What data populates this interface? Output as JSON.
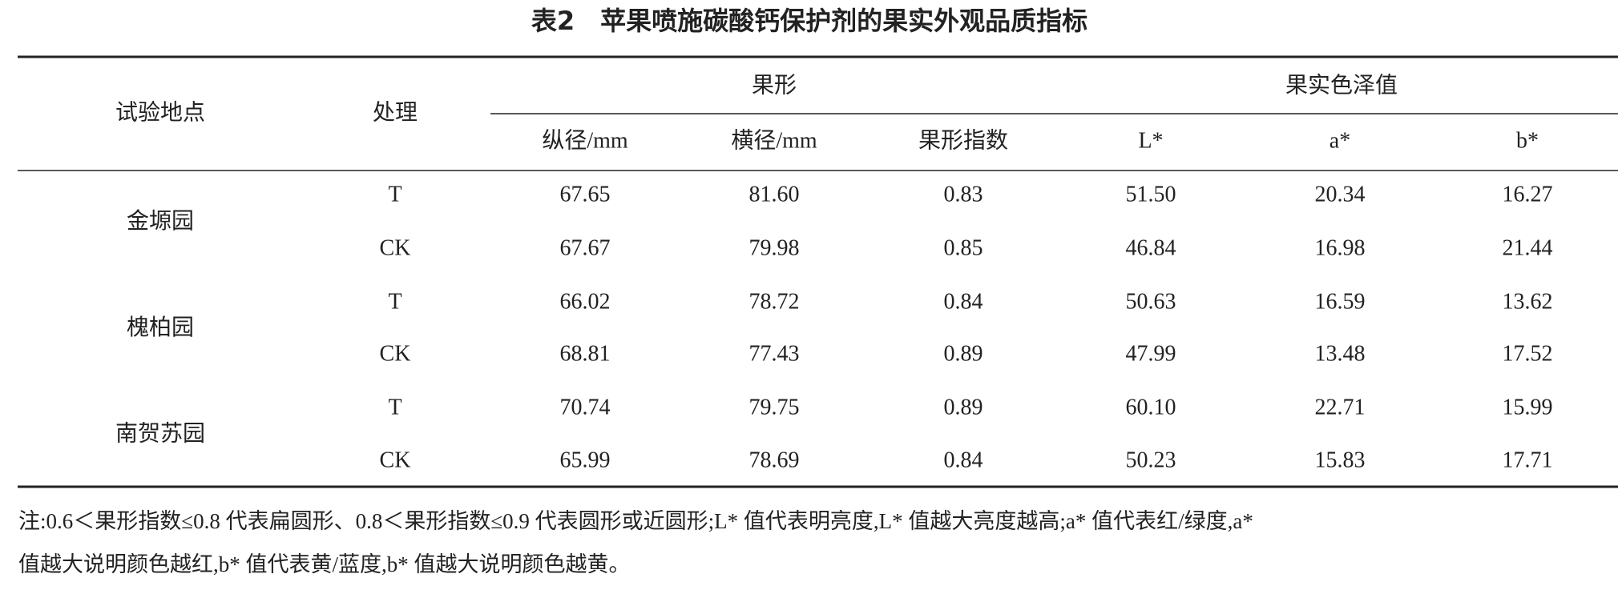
{
  "title": "表2　苹果喷施碳酸钙保护剂的果实外观品质指标",
  "table": {
    "header": {
      "site": "试验地点",
      "treatment": "处理",
      "group_shape": "果形",
      "group_color": "果实色泽值",
      "columns": [
        "纵径/mm",
        "横径/mm",
        "果形指数",
        "L*",
        "a*",
        "b*"
      ]
    },
    "sites": [
      "金塬园",
      "槐柏园",
      "南贺苏园"
    ],
    "rows": [
      [
        "T",
        "67.65",
        "81.60",
        "0.83",
        "51.50",
        "20.34",
        "16.27"
      ],
      [
        "CK",
        "67.67",
        "79.98",
        "0.85",
        "46.84",
        "16.98",
        "21.44"
      ],
      [
        "T",
        "66.02",
        "78.72",
        "0.84",
        "50.63",
        "16.59",
        "13.62"
      ],
      [
        "CK",
        "68.81",
        "77.43",
        "0.89",
        "47.99",
        "13.48",
        "17.52"
      ],
      [
        "T",
        "70.74",
        "79.75",
        "0.89",
        "60.10",
        "22.71",
        "15.99"
      ],
      [
        "CK",
        "65.99",
        "78.69",
        "0.84",
        "50.23",
        "15.83",
        "17.71"
      ]
    ]
  },
  "note": {
    "lines": [
      "注:0.6＜果形指数≤0.8 代表扁圆形、0.8＜果形指数≤0.9 代表圆形或近圆形;L* 值代表明亮度,L* 值越大亮度越高;a* 值代表红/绿度,a*",
      "值越大说明颜色越红,b* 值代表黄/蓝度,b* 值越大说明颜色越黄。"
    ]
  }
}
